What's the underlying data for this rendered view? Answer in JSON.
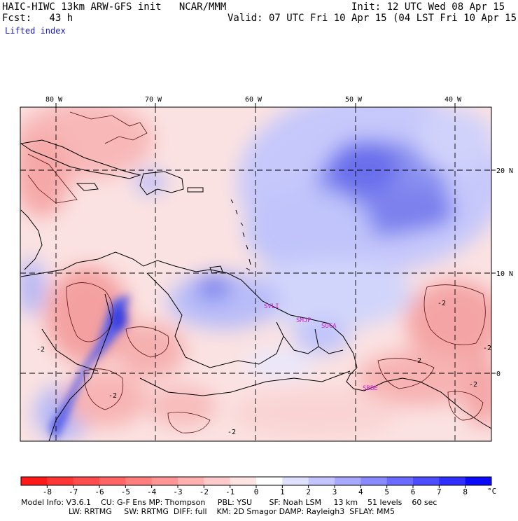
{
  "header": {
    "title_line": "HAIC-HIWC 13km ARW-GFS init   NCAR/MMM",
    "init_line": "Init: 12 UTC Wed 08 Apr 15",
    "fcst_line": "Fcst:   43 h",
    "valid_line": "Valid: 07 UTC Fri 10 Apr 15 (04 LST Fri 10 Apr 15)",
    "field_name": "Lifted index"
  },
  "map": {
    "lon_labels": [
      "80 W",
      "70 W",
      "60 W",
      "50 W",
      "40 W"
    ],
    "lat_labels": [
      "20 N",
      "10 N",
      "0"
    ],
    "stations": [
      "SVLI",
      "SMJP",
      "SOCA",
      "SBBE"
    ],
    "contour_labels": [
      "-2",
      "-2",
      "-2",
      "-2",
      "-2",
      "-2",
      "-2"
    ],
    "colors": {
      "neg_strong": "#ff2020",
      "neg_light": "#fbd0d0",
      "pos_light": "#dcdcff",
      "pos_strong": "#1010ee",
      "grid": "#000000",
      "station": "#cc22cc"
    }
  },
  "colorbar": {
    "tick_labels": [
      "-8",
      "-7",
      "-6",
      "-5",
      "-4",
      "-3",
      "-2",
      "-1",
      "0",
      "1",
      "2",
      "3",
      "4",
      "5",
      "6",
      "7",
      "8"
    ],
    "unit": "°C",
    "colors": [
      "#ff1a1a",
      "#ff3636",
      "#ff4d4d",
      "#ff6565",
      "#ff7e7e",
      "#ff9696",
      "#ffb0b0",
      "#ffcaca",
      "#ffe4e4",
      "#ffffff",
      "#e0e0ff",
      "#c4c4ff",
      "#a8a8ff",
      "#8a8aff",
      "#6b6bff",
      "#4d4dff",
      "#2e2eff",
      "#0a0af8"
    ]
  },
  "footer": {
    "line1": "Model Info: V3.6.1    CU: G-F Ens MP: Thompson     PBL: YSU       SF: Noah LSM     13 km    51 levels    60 sec",
    "line2": "LW: RRTMG     SW: RRTMG  DIFF: full    KM: 2D Smagor DAMP: Rayleigh3  SFLAY: MM5"
  }
}
